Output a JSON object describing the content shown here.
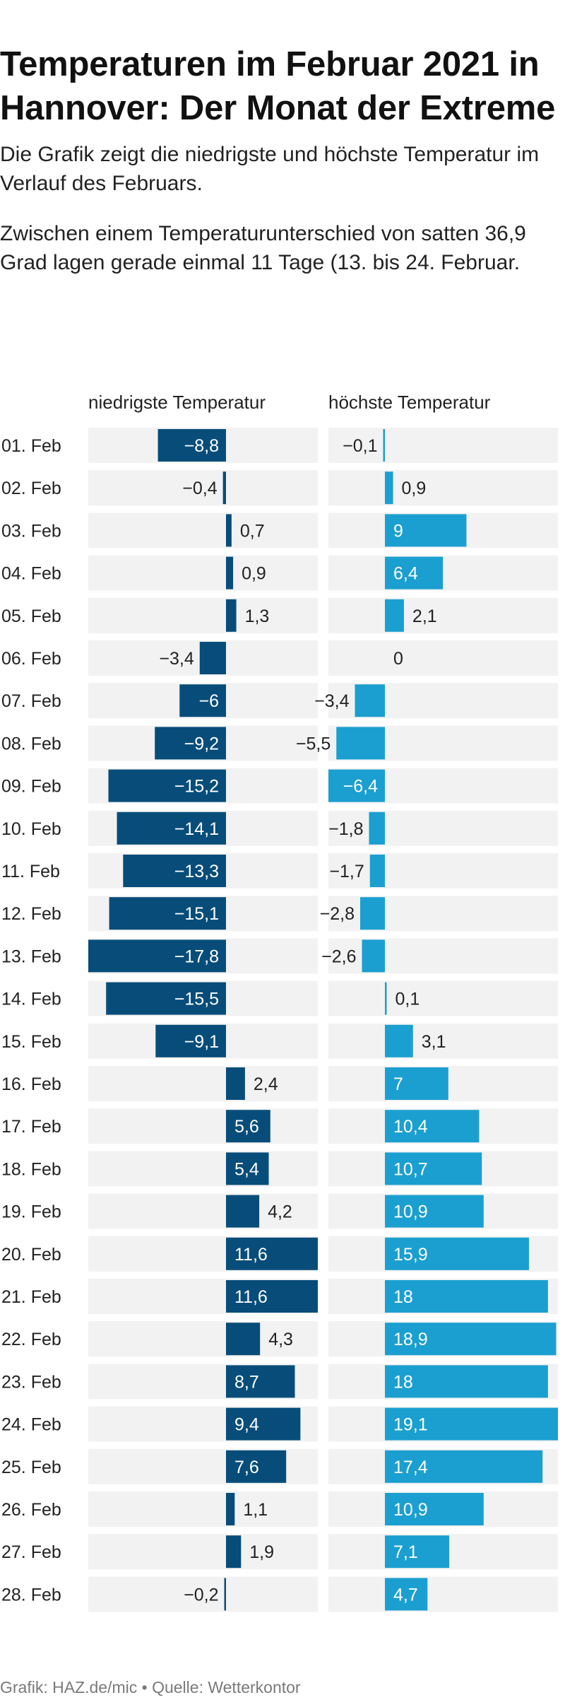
{
  "header": {
    "title": "Temperaturen im Februar 2021 in Hannover: Der Monat der Extreme",
    "description": "Die Grafik zeigt die niedrigste und höchste Temperatur im Verlauf des Februars.",
    "description2": "Zwischen einem Temperaturunterschied von satten 36,9 Grad lagen gerade einmal 11 Tage (13. bis 24. Februar."
  },
  "footer": {
    "text": "Grafik: HAZ.de/mic • Quelle: Wetterkontor"
  },
  "colors": {
    "min_bar": "#084d7a",
    "max_bar": "#1b9fd0",
    "row_background": "#f2f2f2"
  },
  "chart_data": {
    "type": "bar",
    "orientation": "horizontal",
    "categories": [
      "01. Feb",
      "02. Feb",
      "03. Feb",
      "04. Feb",
      "05. Feb",
      "06. Feb",
      "07. Feb",
      "08. Feb",
      "09. Feb",
      "10. Feb",
      "11. Feb",
      "12. Feb",
      "13. Feb",
      "14. Feb",
      "15. Feb",
      "16. Feb",
      "17. Feb",
      "18. Feb",
      "19. Feb",
      "20. Feb",
      "21. Feb",
      "22. Feb",
      "23. Feb",
      "24. Feb",
      "25. Feb",
      "26. Feb",
      "27. Feb",
      "28. Feb"
    ],
    "series": [
      {
        "name": "niedrigste Temperatur",
        "values": [
          -8.8,
          -0.4,
          0.7,
          0.9,
          1.3,
          -3.4,
          -6,
          -9.2,
          -15.2,
          -14.1,
          -13.3,
          -15.1,
          -17.8,
          -15.5,
          -9.1,
          2.4,
          5.6,
          5.4,
          4.2,
          11.6,
          11.6,
          4.3,
          8.7,
          9.4,
          7.6,
          1.1,
          1.9,
          -0.2
        ],
        "labels": [
          "−8,8",
          "−0,4",
          "0,7",
          "0,9",
          "1,3",
          "−3,4",
          "−6",
          "−9,2",
          "−15,2",
          "−14,1",
          "−13,3",
          "−15,1",
          "−17,8",
          "−15,5",
          "−9,1",
          "2,4",
          "5,6",
          "5,4",
          "4,2",
          "11,6",
          "11,6",
          "4,3",
          "8,7",
          "9,4",
          "7,6",
          "1,1",
          "1,9",
          "−0,2"
        ],
        "xlim": [
          -17.8,
          11.6
        ]
      },
      {
        "name": "höchste Temperatur",
        "values": [
          -0.1,
          0.9,
          9,
          6.4,
          2.1,
          0,
          -3.4,
          -5.5,
          -6.4,
          -1.8,
          -1.7,
          -2.8,
          -2.6,
          0.1,
          3.1,
          7,
          10.4,
          10.7,
          10.9,
          15.9,
          18,
          18.9,
          18,
          19.1,
          17.4,
          10.9,
          7.1,
          4.7
        ],
        "labels": [
          "−0,1",
          "0,9",
          "9",
          "6,4",
          "2,1",
          "0",
          "−3,4",
          "−5,5",
          "−6,4",
          "−1,8",
          "−1,7",
          "−2,8",
          "−2,6",
          "0,1",
          "3,1",
          "7",
          "10,4",
          "10,7",
          "10,9",
          "15,9",
          "18",
          "18,9",
          "18",
          "19,1",
          "17,4",
          "10,9",
          "7,1",
          "4,7"
        ],
        "xlim": [
          -6.4,
          19.1
        ]
      }
    ]
  }
}
